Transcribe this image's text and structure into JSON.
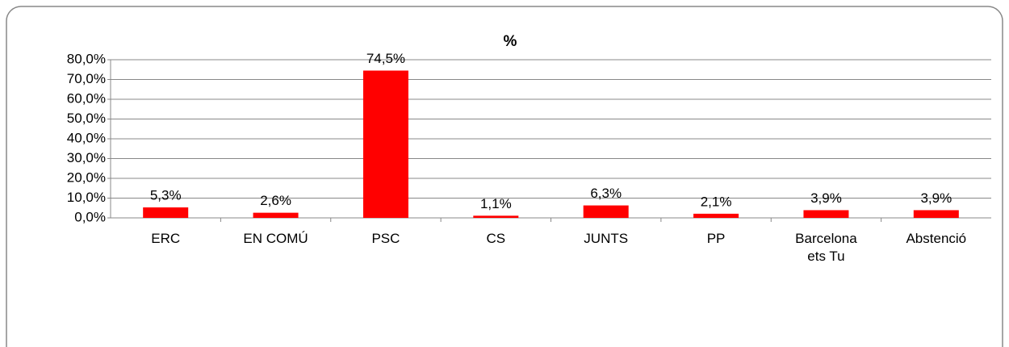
{
  "chart_data": {
    "type": "bar",
    "title": "%",
    "categories": [
      "ERC",
      "EN COMÚ",
      "PSC",
      "CS",
      "JUNTS",
      "PP",
      "Barcelona ets Tu",
      "Abstenció"
    ],
    "values": [
      5.3,
      2.6,
      74.5,
      1.1,
      6.3,
      2.1,
      3.9,
      3.9
    ],
    "value_labels": [
      "5,3%",
      "2,6%",
      "74,5%",
      "1,1%",
      "6,3%",
      "2,1%",
      "3,9%",
      "3,9%"
    ],
    "color": "#ff0000",
    "ylim": [
      0,
      80
    ],
    "yticks": [
      {
        "value": 0,
        "label": "0,0%"
      },
      {
        "value": 10,
        "label": "10,0%"
      },
      {
        "value": 20,
        "label": "20,0%"
      },
      {
        "value": 30,
        "label": "30,0%"
      },
      {
        "value": 40,
        "label": "40,0%"
      },
      {
        "value": 50,
        "label": "50,0%"
      },
      {
        "value": 60,
        "label": "60,0%"
      },
      {
        "value": 70,
        "label": "70,0%"
      },
      {
        "value": 80,
        "label": "80,0%"
      }
    ],
    "grid": true
  }
}
